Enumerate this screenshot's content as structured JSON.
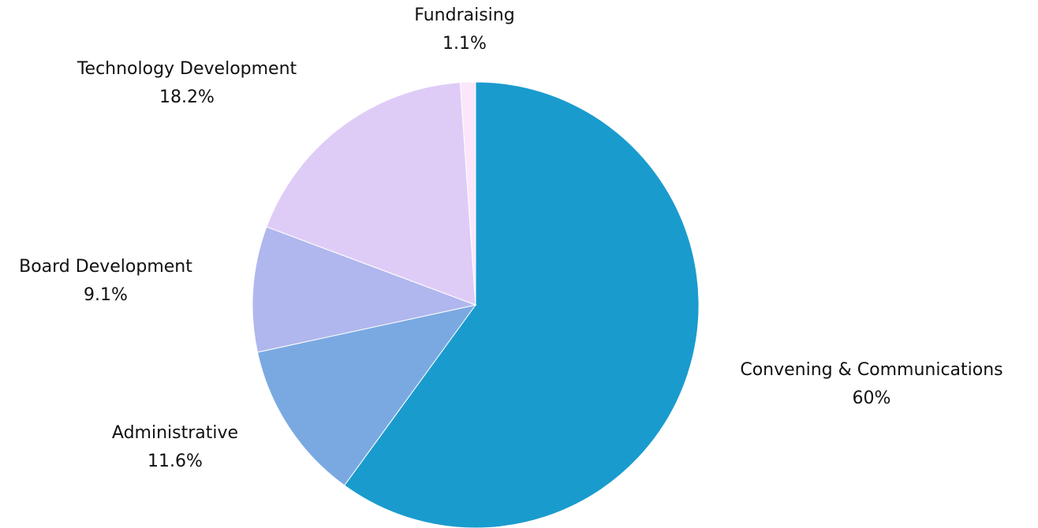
{
  "chart_data": {
    "type": "pie",
    "title": "",
    "slices": [
      {
        "label": "Convening & Communications",
        "value": 60,
        "value_label": "60%",
        "color": "#1a9bce"
      },
      {
        "label": "Administrative",
        "value": 11.6,
        "value_label": "11.6%",
        "color": "#7aa9e2"
      },
      {
        "label": "Board Development",
        "value": 9.1,
        "value_label": "9.1%",
        "color": "#b0b7ee"
      },
      {
        "label": "Technology Development",
        "value": 18.2,
        "value_label": "18.2%",
        "color": "#dfccf6"
      },
      {
        "label": "Fundraising",
        "value": 1.1,
        "value_label": "1.1%",
        "color": "#fbe6fb"
      }
    ],
    "start_angle": "12 o'clock",
    "direction": "clockwise",
    "legend": "none"
  }
}
